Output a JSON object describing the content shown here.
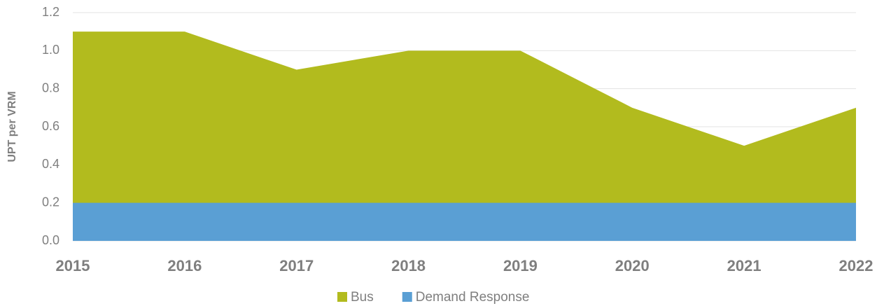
{
  "chart_data": {
    "type": "area",
    "y_label": "UPT per VRM",
    "categories": [
      "2015",
      "2016",
      "2017",
      "2018",
      "2019",
      "2020",
      "2021",
      "2022"
    ],
    "series": [
      {
        "name": "Bus",
        "color": "#b2bb1e",
        "values": [
          1.1,
          1.1,
          0.9,
          1.0,
          1.0,
          0.7,
          0.5,
          0.7
        ]
      },
      {
        "name": "Demand Response",
        "color": "#5a9fd4",
        "values": [
          0.2,
          0.2,
          0.2,
          0.2,
          0.2,
          0.2,
          0.2,
          0.2
        ]
      }
    ],
    "ylim": [
      0,
      1.2
    ],
    "yticks": [
      {
        "value": 0,
        "label": "0.0"
      },
      0.2,
      0.4,
      0.6,
      0.8,
      {
        "value": 1,
        "label": "1.0"
      },
      1.2
    ],
    "grid": true,
    "legend": "bottom"
  }
}
